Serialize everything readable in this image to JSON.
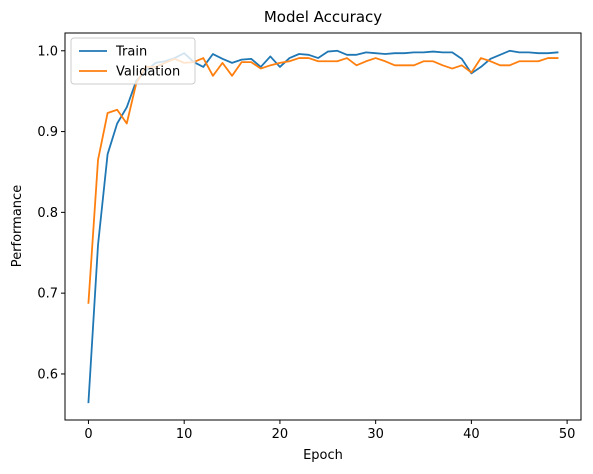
{
  "chart_data": {
    "type": "line",
    "title": "Model Accuracy",
    "xlabel": "Epoch",
    "ylabel": "Performance",
    "xlim": [
      -2.45,
      51.45
    ],
    "ylim": [
      0.543,
      1.022
    ],
    "xticks": [
      0,
      10,
      20,
      30,
      40,
      50
    ],
    "yticks": [
      0.6,
      0.7,
      0.8,
      0.9,
      1.0
    ],
    "ytick_labels": [
      "0.6",
      "0.7",
      "0.8",
      "0.9",
      "1.0"
    ],
    "legend": "upper left",
    "grid": false,
    "series": [
      {
        "name": "Train",
        "color": "#1f77b4",
        "x": [
          0,
          1,
          2,
          3,
          4,
          5,
          6,
          7,
          8,
          9,
          10,
          11,
          12,
          13,
          14,
          15,
          16,
          17,
          18,
          19,
          20,
          21,
          22,
          23,
          24,
          25,
          26,
          27,
          28,
          29,
          30,
          31,
          32,
          33,
          34,
          35,
          36,
          37,
          38,
          39,
          40,
          41,
          42,
          43,
          44,
          45,
          46,
          47,
          48,
          49
        ],
        "y": [
          0.565,
          0.76,
          0.872,
          0.91,
          0.93,
          0.963,
          0.975,
          0.985,
          0.987,
          0.991,
          0.997,
          0.986,
          0.98,
          0.996,
          0.99,
          0.985,
          0.989,
          0.99,
          0.98,
          0.993,
          0.98,
          0.991,
          0.996,
          0.995,
          0.991,
          0.999,
          1.0,
          0.995,
          0.995,
          0.998,
          0.997,
          0.996,
          0.997,
          0.997,
          0.998,
          0.998,
          0.999,
          0.998,
          0.998,
          0.99,
          0.972,
          0.98,
          0.99,
          0.995,
          1.0,
          0.998,
          0.998,
          0.997,
          0.997,
          0.998
        ]
      },
      {
        "name": "Validation",
        "color": "#ff7f0e",
        "x": [
          0,
          1,
          2,
          3,
          4,
          5,
          6,
          7,
          8,
          9,
          10,
          11,
          12,
          13,
          14,
          15,
          16,
          17,
          18,
          19,
          20,
          21,
          22,
          23,
          24,
          25,
          26,
          27,
          28,
          29,
          30,
          31,
          32,
          33,
          34,
          35,
          36,
          37,
          38,
          39,
          40,
          41,
          42,
          43,
          44,
          45,
          46,
          47,
          48,
          49
        ],
        "y": [
          0.688,
          0.865,
          0.923,
          0.927,
          0.91,
          0.96,
          0.98,
          0.98,
          0.985,
          0.99,
          0.985,
          0.986,
          0.991,
          0.969,
          0.985,
          0.969,
          0.986,
          0.986,
          0.978,
          0.982,
          0.985,
          0.987,
          0.991,
          0.991,
          0.987,
          0.987,
          0.987,
          0.991,
          0.982,
          0.987,
          0.991,
          0.987,
          0.982,
          0.982,
          0.982,
          0.987,
          0.987,
          0.982,
          0.978,
          0.982,
          0.973,
          0.991,
          0.987,
          0.982,
          0.982,
          0.987,
          0.987,
          0.987,
          0.991,
          0.991
        ]
      }
    ]
  }
}
